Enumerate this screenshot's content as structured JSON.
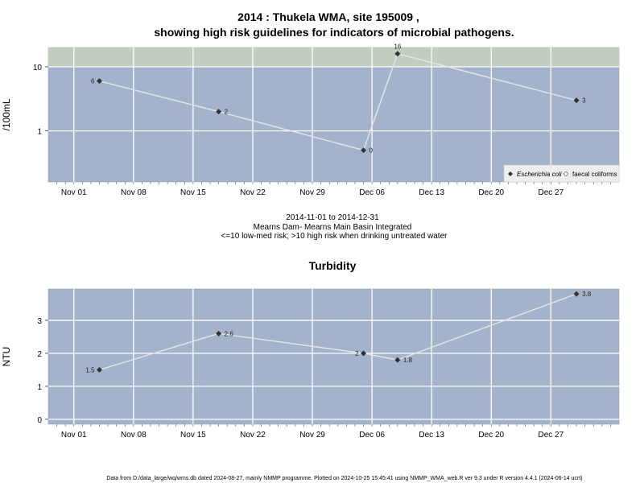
{
  "colors": {
    "panel_bg": "#a3b3cb",
    "high_risk_band": "#c3cdbf",
    "grid": "#ffffff",
    "series_line": "#e6e6e6",
    "point": "#333333",
    "legend_bg": "#eeeeee"
  },
  "chart_data": [
    {
      "type": "line",
      "title": "2014 : Thukela WMA, site 195009 ,",
      "subtitle": "showing high risk guidelines for indicators of microbial pathogens.",
      "ylabel": "/100mL",
      "y_scale": "log",
      "ylim": [
        0.16,
        20
      ],
      "y_ticks": [
        1,
        10
      ],
      "y_tick_labels": [
        "1",
        "10"
      ],
      "x_ticks": [
        "Nov 01",
        "Nov 08",
        "Nov 15",
        "Nov 22",
        "Nov 29",
        "Dec 06",
        "Dec 13",
        "Dec 20",
        "Dec 27"
      ],
      "x_tick_dates": [
        "2014-11-01",
        "2014-11-08",
        "2014-11-15",
        "2014-11-22",
        "2014-11-29",
        "2014-12-06",
        "2014-12-13",
        "2014-12-20",
        "2014-12-27"
      ],
      "xlim": [
        "2014-10-29",
        "2015-01-04"
      ],
      "high_risk_threshold": 10,
      "grid": true,
      "legend_position": "bottom-right",
      "series": [
        {
          "name": "Escherichia coli",
          "dates": [
            "2014-11-04",
            "2014-11-18",
            "2014-12-05",
            "2014-12-09",
            "2014-12-30"
          ],
          "values": [
            6,
            2,
            0.5,
            16,
            3
          ],
          "labels": [
            "6",
            "2",
            "0",
            "16",
            "3"
          ]
        }
      ],
      "legend": [
        "Escherichia coli",
        "faecal coliforms"
      ],
      "caption": [
        "2014-11-01 to 2014-12-31",
        "Mearns Dam- Mearns Main Basin Integrated",
        "<=10 low-med risk; >10 high risk when drinking untreated water"
      ]
    },
    {
      "type": "line",
      "title": "Turbidity",
      "ylabel": "NTU",
      "ylim": [
        -0.15,
        3.95
      ],
      "y_ticks": [
        0,
        1,
        2,
        3
      ],
      "y_tick_labels": [
        "0",
        "1",
        "2",
        "3"
      ],
      "x_ticks": [
        "Nov 01",
        "Nov 08",
        "Nov 15",
        "Nov 22",
        "Nov 29",
        "Dec 06",
        "Dec 13",
        "Dec 20",
        "Dec 27"
      ],
      "x_tick_dates": [
        "2014-11-01",
        "2014-11-08",
        "2014-11-15",
        "2014-11-22",
        "2014-11-29",
        "2014-12-06",
        "2014-12-13",
        "2014-12-20",
        "2014-12-27"
      ],
      "xlim": [
        "2014-10-29",
        "2015-01-04"
      ],
      "grid": true,
      "series": [
        {
          "dates": [
            "2014-11-04",
            "2014-11-18",
            "2014-12-05",
            "2014-12-09",
            "2014-12-30"
          ],
          "values": [
            1.5,
            2.6,
            2.0,
            1.8,
            3.8
          ],
          "labels": [
            "1.5",
            "2.6",
            "2",
            "1.8",
            "3.8"
          ]
        }
      ]
    }
  ],
  "footer": "Data from D:/data_large/wq/wms.db dated 2024-08-27, mainly NMMP programme. Plotted on 2024-10-25 15:45:41 using NMMP_WMA_web.R ver 9.3 under R version 4.4.1 (2024-06-14 ucrt)"
}
